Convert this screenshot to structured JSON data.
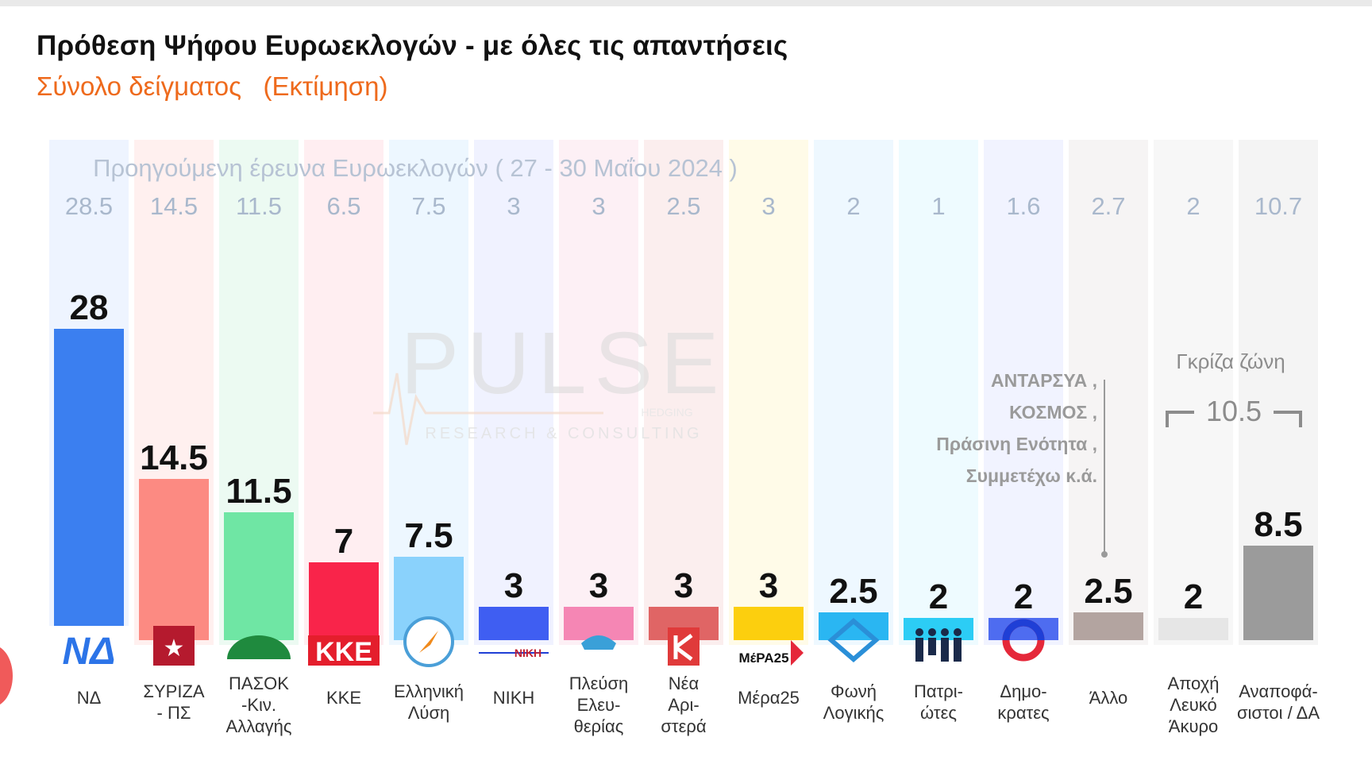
{
  "header": {
    "title": "Πρόθεση Ψήφου Ευρωεκλογών - με όλες τις απαντήσεις",
    "subtitle": "Σύνολο δείγματος   (Εκτίμηση)"
  },
  "colors": {
    "accent_orange": "#ee6a1c",
    "prev_values": "#a9b8cc",
    "grey_zone": "#8c8c8c"
  },
  "chart_data": {
    "type": "bar",
    "categories": [
      "ΝΔ",
      "ΣΥΡΙΖΑ - ΠΣ",
      "ΠΑΣΟΚ -Κιν. Αλλαγής",
      "ΚΚΕ",
      "Ελληνική Λύση",
      "ΝΙΚΗ",
      "Πλεύση Ελευ- θερίας",
      "Νέα Αρι- στερά",
      "Μέρα25",
      "Φωνή Λογικής",
      "Πατρι- ώτες",
      "Δημο- κρατες",
      "Άλλο",
      "Αποχή Λευκό Άκυρο",
      "Αναποφά- σιστοι / ΔΑ"
    ],
    "label_lines": [
      [
        "ΝΔ"
      ],
      [
        "ΣΥΡΙΖΑ",
        "- ΠΣ"
      ],
      [
        "ΠΑΣΟΚ",
        "-Κιν.",
        "Αλλαγής"
      ],
      [
        "ΚΚΕ"
      ],
      [
        "Ελληνική",
        "Λύση"
      ],
      [
        "ΝΙΚΗ"
      ],
      [
        "Πλεύση",
        "Ελευ-",
        "θερίας"
      ],
      [
        "Νέα",
        "Αρι-",
        "στερά"
      ],
      [
        "Μέρα25"
      ],
      [
        "Φωνή",
        "Λογικής"
      ],
      [
        "Πατρι-",
        "ώτες"
      ],
      [
        "Δημο-",
        "κρατες"
      ],
      [
        "Άλλο"
      ],
      [
        "Αποχή",
        "Λευκό",
        "Άκυρο"
      ],
      [
        "Αναποφά-",
        "σιστοι / ΔΑ"
      ]
    ],
    "series": [
      {
        "values": [
          28,
          14.5,
          11.5,
          7,
          7.5,
          3,
          3,
          3,
          3,
          2.5,
          2,
          2,
          2.5,
          2,
          8.5
        ],
        "labels": [
          "28",
          "14.5",
          "11.5",
          "7",
          "7.5",
          "3",
          "3",
          "3",
          "3",
          "2.5",
          "2",
          "2",
          "2.5",
          "2",
          "8.5"
        ]
      }
    ],
    "bar_colors": [
      "#3b7ff0",
      "#fc8a82",
      "#6fe6a4",
      "#f9244a",
      "#8ad2fc",
      "#3f5ef2",
      "#f586b4",
      "#e06565",
      "#fccf0e",
      "#2ab6f2",
      "#2ccdf5",
      "#4e6cf0",
      "#b3a4a0",
      "#e6e6e6",
      "#9b9b9b"
    ],
    "column_bg_colors": [
      "#eef4ff",
      "#fff0ef",
      "#ecfaf2",
      "#ffeef1",
      "#edf7ff",
      "#f0f2ff",
      "#fdf0f5",
      "#fbeeee",
      "#fffbe8",
      "#eef8ff",
      "#eefbff",
      "#f1f3ff",
      "#f6f4f4",
      "#f7f7f7",
      "#f4f4f4"
    ],
    "previous_survey": {
      "caption": "Προηγούμενη έρευνα Ευρωεκλογών ( 27 - 30 Μαΐου 2024 )",
      "values": [
        "28.5",
        "14.5",
        "11.5",
        "6.5",
        "7.5",
        "3",
        "3",
        "2.5",
        "3",
        "2",
        "1",
        "1.6",
        "2.7",
        "2",
        "10.7"
      ]
    },
    "annotations": {
      "other_parties": [
        "ΑΝΤΑΡΣΥΑ ,",
        "ΚΟΣΜΟΣ ,",
        "Πράσινη Ενότητα ,",
        "Συμμετέχω   κ.ά."
      ],
      "grey_zone_title": "Γκρίζα ζώνη",
      "grey_zone_value": "10.5"
    },
    "watermark": {
      "brand": "PULSE",
      "sub": "RESEARCH & CONSULTING",
      "small": "HEDGING"
    },
    "logo_labels": {
      "nd": "ΝΔ",
      "kke": "ΚΚΕ",
      "niki": "ΝΙΚΗ",
      "mera25": "ΜέΡΑ25"
    },
    "ylim": [
      0,
      30
    ],
    "xlabel": "",
    "ylabel": "",
    "grid": false,
    "legend": "none"
  }
}
